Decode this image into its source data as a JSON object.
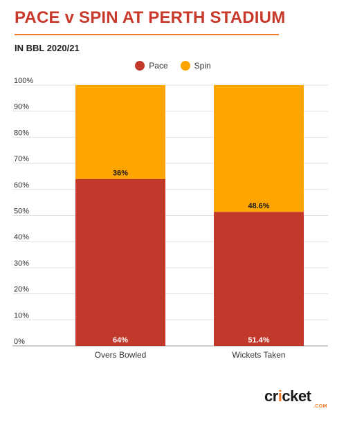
{
  "header": {
    "title": "PACE v SPIN AT PERTH STADIUM",
    "subtitle": "IN BBL 2020/21"
  },
  "colors": {
    "pace": "#c0392b",
    "spin": "#ffa500",
    "accent": "#f07a28"
  },
  "logo": {
    "wordmark": "cricket",
    "suffix": ".COM"
  },
  "chart_data": {
    "type": "bar",
    "stacked": true,
    "categories": [
      "Overs Bowled",
      "Wickets Taken"
    ],
    "series": [
      {
        "name": "Pace",
        "values": [
          64,
          51.4
        ],
        "labels": [
          "64%",
          "51.4%"
        ]
      },
      {
        "name": "Spin",
        "values": [
          36,
          48.6
        ],
        "labels": [
          "36%",
          "48.6%"
        ]
      }
    ],
    "ylim": [
      0,
      100
    ],
    "yticks": [
      "0%",
      "10%",
      "20%",
      "30%",
      "40%",
      "50%",
      "60%",
      "70%",
      "80%",
      "90%",
      "100%"
    ],
    "grid": true,
    "legend": "top-center"
  }
}
